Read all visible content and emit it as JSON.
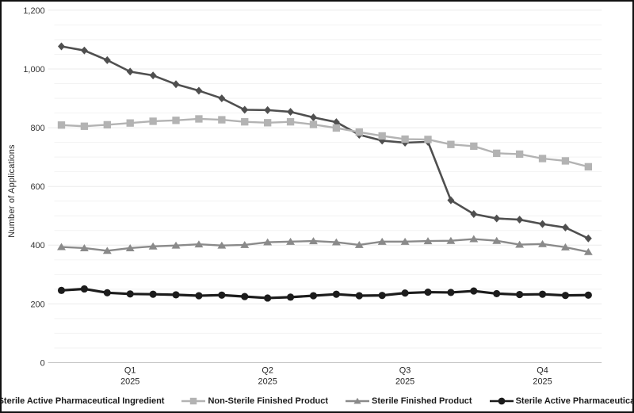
{
  "chart_data": {
    "type": "line",
    "title": "",
    "xlabel": "",
    "ylabel": "Number of Applications",
    "ylim": [
      0,
      1200
    ],
    "y_tick_interval": 200,
    "gridline_interval": 50,
    "grid_on": true,
    "legend_position": "bottom",
    "y_tick_labels": [
      "0",
      "200",
      "400",
      "600",
      "800",
      "1,000",
      "1,200"
    ],
    "y_tick_values": [
      0,
      200,
      400,
      600,
      800,
      1000,
      1200
    ],
    "points_per_series": 24,
    "x_axis": {
      "labels": [
        {
          "quarter": "Q1",
          "year": "2025",
          "point_index": 3
        },
        {
          "quarter": "Q2",
          "year": "2025",
          "point_index": 9
        },
        {
          "quarter": "Q3",
          "year": "2025",
          "point_index": 15
        },
        {
          "quarter": "Q4",
          "year": "2025",
          "point_index": 21
        }
      ]
    },
    "series": [
      {
        "name": "Non-Sterile Active Pharmaceutical Ingredient",
        "marker": "diamond",
        "color": "#4f4f4f",
        "line_width": 2.6,
        "values": [
          1077,
          1063,
          1030,
          991,
          978,
          948,
          926,
          900,
          861,
          860,
          854,
          835,
          819,
          776,
          756,
          749,
          752,
          553,
          506,
          491,
          487,
          472,
          460,
          423
        ]
      },
      {
        "name": "Non-Sterile Finished Product",
        "marker": "square",
        "color": "#b3b3b3",
        "line_width": 2.4,
        "values": [
          809,
          805,
          810,
          816,
          822,
          825,
          830,
          827,
          820,
          817,
          820,
          811,
          799,
          785,
          772,
          761,
          760,
          743,
          737,
          713,
          710,
          695,
          687,
          667
        ]
      },
      {
        "name": "Sterile Finished Product",
        "marker": "triangle",
        "color": "#8a8a8a",
        "line_width": 2.4,
        "values": [
          394,
          390,
          381,
          390,
          396,
          399,
          403,
          399,
          401,
          410,
          412,
          414,
          410,
          401,
          412,
          412,
          414,
          415,
          421,
          415,
          402,
          404,
          393,
          377
        ]
      },
      {
        "name": "Sterile Active Pharmaceutical Ingredient",
        "marker": "circle",
        "color": "#1c1c1c",
        "line_width": 3.2,
        "values": [
          246,
          251,
          238,
          234,
          233,
          231,
          228,
          230,
          225,
          220,
          223,
          228,
          233,
          228,
          229,
          237,
          240,
          239,
          244,
          235,
          232,
          233,
          229,
          230
        ]
      }
    ],
    "style": {
      "minor_grid_color": "#f2f2f2",
      "major_grid_color": "#ebebeb",
      "zero_line_color": "#c4c4c4",
      "tick_text_color": "#333333",
      "axis_text_color": "#262626"
    }
  }
}
